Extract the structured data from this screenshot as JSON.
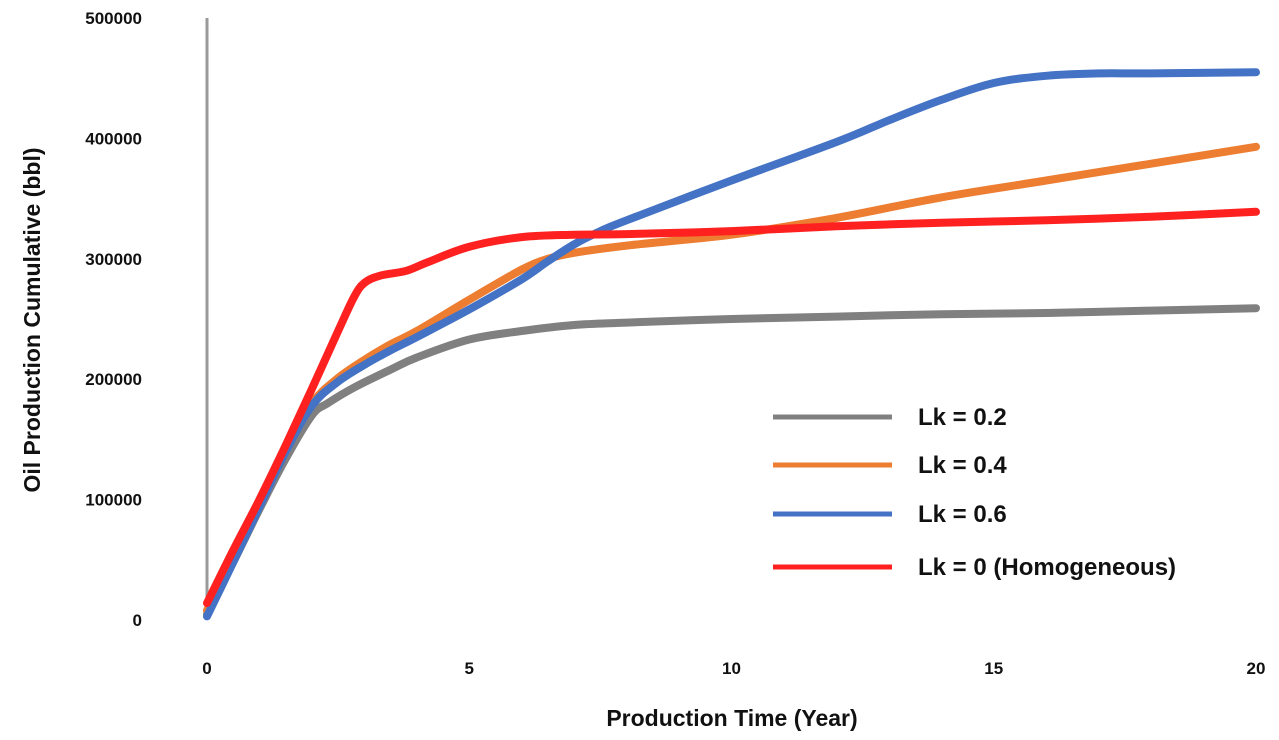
{
  "chart_data": {
    "type": "line",
    "title": "",
    "xlabel": "Production Time (Year)",
    "ylabel": "Oil Production Cumulative (bbl)",
    "xlim": [
      0,
      20
    ],
    "ylim": [
      0,
      500000
    ],
    "xticks": [
      0,
      5,
      10,
      15,
      20
    ],
    "yticks": [
      0,
      100000,
      200000,
      300000,
      400000,
      500000
    ],
    "grid": false,
    "legend_position": "right",
    "series": [
      {
        "name": "Lk = 0.2",
        "color": "#808080",
        "x": [
          0,
          0.5,
          1,
          1.5,
          2,
          2.3,
          2.8,
          3.5,
          4,
          5,
          6,
          7,
          8,
          10,
          12,
          14,
          16,
          18,
          20
        ],
        "y": [
          5000,
          48000,
          92000,
          134000,
          170000,
          180000,
          193000,
          208000,
          218000,
          233000,
          240000,
          245000,
          247000,
          250000,
          252000,
          254000,
          255000,
          257000,
          259000
        ]
      },
      {
        "name": "Lk = 0.4",
        "color": "#ED7D31",
        "x": [
          0,
          0.5,
          1,
          1.5,
          2,
          2.5,
          3,
          3.5,
          4,
          5,
          6,
          6.5,
          7,
          8,
          10,
          12,
          14,
          16,
          18,
          20
        ],
        "y": [
          8000,
          52000,
          96000,
          142000,
          180000,
          201000,
          216000,
          229000,
          240000,
          266000,
          291000,
          300000,
          305000,
          311000,
          320000,
          334000,
          351000,
          365000,
          379000,
          393000
        ]
      },
      {
        "name": "Lk = 0.6",
        "color": "#4472C4",
        "x": [
          0,
          0.5,
          1,
          1.5,
          2,
          2.5,
          3,
          3.5,
          4,
          5,
          6,
          6.5,
          7,
          7.5,
          8,
          10,
          12,
          13,
          14,
          15,
          16,
          17,
          18,
          20
        ],
        "y": [
          3000,
          48000,
          94000,
          140000,
          178000,
          198000,
          212000,
          224000,
          235000,
          258000,
          283000,
          298000,
          312000,
          323000,
          332000,
          365000,
          397000,
          415000,
          432000,
          446000,
          452000,
          454000,
          454000,
          455000
        ]
      },
      {
        "name": "Lk = 0 (Homogeneous)",
        "color": "#FF2020",
        "x": [
          0,
          0.5,
          1,
          1.5,
          2,
          2.5,
          2.8,
          3,
          3.3,
          3.8,
          4.2,
          5,
          6,
          7,
          8,
          10,
          12,
          14,
          16,
          18,
          20
        ],
        "y": [
          14000,
          58000,
          100000,
          145000,
          192000,
          240000,
          268000,
          280000,
          286000,
          290000,
          297000,
          310000,
          318000,
          320000,
          320500,
          323000,
          327000,
          330000,
          332000,
          335000,
          339000
        ]
      }
    ]
  }
}
